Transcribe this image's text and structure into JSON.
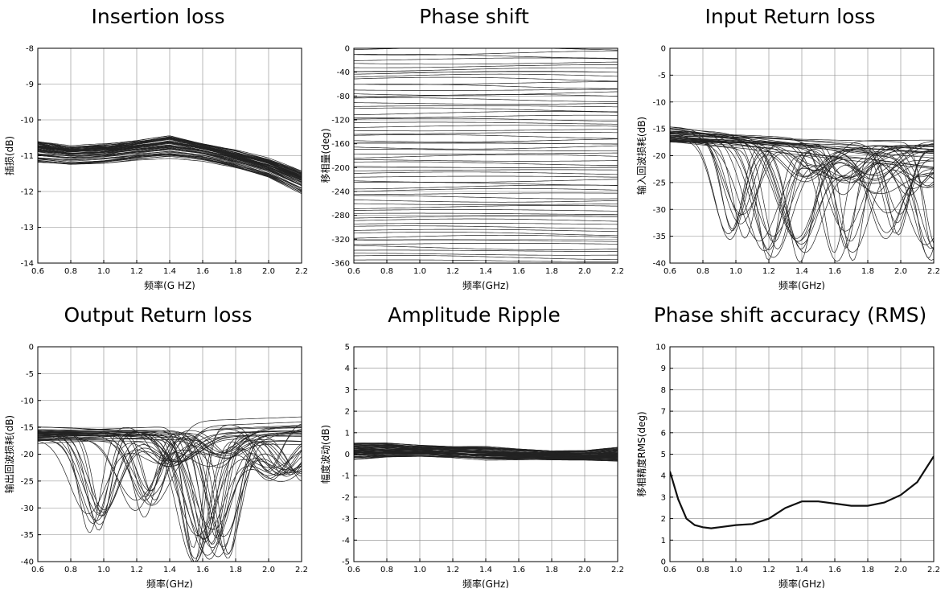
{
  "chart_data": [
    {
      "type": "line",
      "title": "Insertion loss",
      "xlabel": "频率(G HZ)",
      "ylabel": "插损(dB)",
      "xlim": [
        0.6,
        2.2
      ],
      "ylim": [
        -14,
        -8
      ],
      "xticks": [
        0.6,
        0.8,
        1.0,
        1.2,
        1.4,
        1.6,
        1.8,
        2.0,
        2.2
      ],
      "yticks": [
        -14,
        -13,
        -12,
        -11,
        -10,
        -9,
        -8
      ],
      "grid": true,
      "series_count": 64,
      "series_color": "#222222",
      "envelope": {
        "x": [
          0.6,
          0.8,
          1.0,
          1.2,
          1.4,
          1.6,
          1.8,
          2.0,
          2.2
        ],
        "mean": [
          -10.9,
          -11.0,
          -10.95,
          -10.85,
          -10.75,
          -10.9,
          -11.1,
          -11.35,
          -11.75
        ],
        "spread": [
          0.3,
          0.25,
          0.25,
          0.25,
          0.3,
          0.25,
          0.25,
          0.25,
          0.3
        ]
      }
    },
    {
      "type": "line",
      "title": "Phase shift",
      "xlabel": "频率(GHz)",
      "ylabel": "移相量(deg)",
      "xlim": [
        0.6,
        2.2
      ],
      "ylim": [
        -360,
        0
      ],
      "xticks": [
        0.6,
        0.8,
        1.0,
        1.2,
        1.4,
        1.6,
        1.8,
        2.0,
        2.2
      ],
      "yticks": [
        0,
        -40,
        -80,
        -120,
        -160,
        -200,
        -240,
        -280,
        -320,
        -360
      ],
      "grid": true,
      "series_count": 64,
      "series_color": "#222222",
      "states": {
        "start": 0,
        "step": -5.625,
        "count": 64
      }
    },
    {
      "type": "line",
      "title": "Input Return loss",
      "xlabel": "频率(GHz)",
      "ylabel": "输入回波损耗(dB)",
      "xlim": [
        0.6,
        2.2
      ],
      "ylim": [
        -40,
        0
      ],
      "xticks": [
        0.6,
        0.8,
        1.0,
        1.2,
        1.4,
        1.6,
        1.8,
        2.0,
        2.2
      ],
      "yticks": [
        0,
        -5,
        -10,
        -15,
        -20,
        -25,
        -30,
        -35,
        -40
      ],
      "grid": true,
      "series_count": 44,
      "series_color": "#222222",
      "start_level": -16,
      "dips": [
        {
          "x": 1.0,
          "y": -34
        },
        {
          "x": 1.2,
          "y": -39
        },
        {
          "x": 1.38,
          "y": -39
        },
        {
          "x": 1.65,
          "y": -38
        },
        {
          "x": 1.95,
          "y": -34
        },
        {
          "x": 2.18,
          "y": -40
        }
      ]
    },
    {
      "type": "line",
      "title": "Output Return loss",
      "xlabel": "频率(GHz)",
      "ylabel": "输出回波损耗(dB)",
      "xlim": [
        0.6,
        2.2
      ],
      "ylim": [
        -40,
        0
      ],
      "xticks": [
        0.6,
        0.8,
        1.0,
        1.2,
        1.4,
        1.6,
        1.8,
        2.0,
        2.2
      ],
      "yticks": [
        0,
        -5,
        -10,
        -15,
        -20,
        -25,
        -30,
        -35,
        -40
      ],
      "grid": true,
      "series_count": 44,
      "series_color": "#222222",
      "start_level": -16,
      "end_level": -15,
      "dips": [
        {
          "x": 0.95,
          "y": -33
        },
        {
          "x": 1.25,
          "y": -30
        },
        {
          "x": 1.6,
          "y": -39
        },
        {
          "x": 1.7,
          "y": -38
        }
      ]
    },
    {
      "type": "line",
      "title": "Amplitude Ripple",
      "xlabel": "频率(GHz)",
      "ylabel": "幅度波动(dB)",
      "xlim": [
        0.6,
        2.2
      ],
      "ylim": [
        -5,
        5
      ],
      "xticks": [
        0.6,
        0.8,
        1.0,
        1.2,
        1.4,
        1.6,
        1.8,
        2.0,
        2.2
      ],
      "yticks": [
        5,
        4,
        3,
        2,
        1,
        0,
        -1,
        -2,
        -3,
        -4,
        -5
      ],
      "grid": true,
      "series_count": 64,
      "series_color": "#222222",
      "envelope": {
        "x": [
          0.6,
          0.8,
          1.0,
          1.2,
          1.4,
          1.6,
          1.8,
          2.0,
          2.2
        ],
        "mean": [
          0.15,
          0.2,
          0.15,
          0.1,
          0.05,
          0.0,
          -0.05,
          -0.05,
          0.0
        ],
        "spread": [
          0.35,
          0.3,
          0.25,
          0.25,
          0.3,
          0.25,
          0.2,
          0.2,
          0.3
        ]
      }
    },
    {
      "type": "line",
      "title": "Phase shift accuracy (RMS)",
      "xlabel": "频率(GHz)",
      "ylabel": "移相精度RMS(deg)",
      "xlim": [
        0.6,
        2.2
      ],
      "ylim": [
        0,
        10
      ],
      "xticks": [
        0.6,
        0.8,
        1.0,
        1.2,
        1.4,
        1.6,
        1.8,
        2.0,
        2.2
      ],
      "yticks": [
        10,
        9,
        8,
        7,
        6,
        5,
        4,
        3,
        2,
        1,
        0
      ],
      "grid": true,
      "series_color": "#111111",
      "x": [
        0.6,
        0.65,
        0.7,
        0.75,
        0.8,
        0.85,
        0.9,
        1.0,
        1.1,
        1.2,
        1.3,
        1.4,
        1.5,
        1.6,
        1.7,
        1.8,
        1.9,
        2.0,
        2.1,
        2.2
      ],
      "values": [
        4.2,
        2.9,
        2.0,
        1.7,
        1.6,
        1.55,
        1.6,
        1.7,
        1.75,
        2.0,
        2.5,
        2.8,
        2.8,
        2.7,
        2.6,
        2.6,
        2.75,
        3.1,
        3.7,
        4.9
      ]
    }
  ]
}
